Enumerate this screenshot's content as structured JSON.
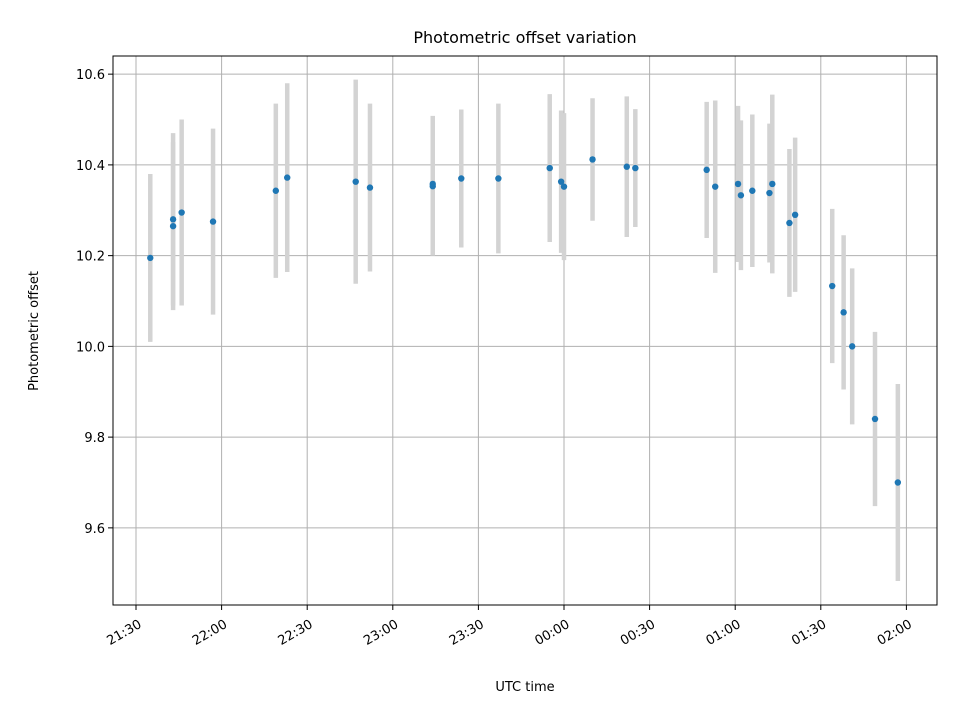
{
  "chart_data": {
    "type": "scatter",
    "title": "Photometric offset variation",
    "xlabel": "UTC time",
    "ylabel": "Photometric offset",
    "ylim": [
      9.43,
      10.64
    ],
    "grid": true,
    "x_is_time": true,
    "x_ticks": [
      "21:30",
      "22:00",
      "22:30",
      "23:00",
      "23:30",
      "00:00",
      "00:30",
      "01:00",
      "01:30",
      "02:00"
    ],
    "y_ticks": [
      "9.6",
      "9.8",
      "10.0",
      "10.2",
      "10.4",
      "10.6"
    ],
    "points": [
      {
        "time": "21:35",
        "y": 10.195,
        "err": 0.185
      },
      {
        "time": "21:43",
        "y": 10.28,
        "err": 0.19
      },
      {
        "time": "21:43",
        "y": 10.265,
        "err": 0.185
      },
      {
        "time": "21:46",
        "y": 10.295,
        "err": 0.205
      },
      {
        "time": "21:57",
        "y": 10.275,
        "err": 0.205
      },
      {
        "time": "22:19",
        "y": 10.343,
        "err": 0.192
      },
      {
        "time": "22:23",
        "y": 10.372,
        "err": 0.208
      },
      {
        "time": "22:47",
        "y": 10.363,
        "err": 0.225
      },
      {
        "time": "22:52",
        "y": 10.35,
        "err": 0.185
      },
      {
        "time": "23:14",
        "y": 10.353,
        "err": 0.153
      },
      {
        "time": "23:14",
        "y": 10.358,
        "err": 0.15
      },
      {
        "time": "23:24",
        "y": 10.37,
        "err": 0.152
      },
      {
        "time": "23:37",
        "y": 10.37,
        "err": 0.165
      },
      {
        "time": "23:55",
        "y": 10.393,
        "err": 0.163
      },
      {
        "time": "23:59",
        "y": 10.363,
        "err": 0.157
      },
      {
        "time": "00:00",
        "y": 10.352,
        "err": 0.162
      },
      {
        "time": "00:10",
        "y": 10.412,
        "err": 0.135
      },
      {
        "time": "00:22",
        "y": 10.396,
        "err": 0.155
      },
      {
        "time": "00:25",
        "y": 10.393,
        "err": 0.13
      },
      {
        "time": "00:50",
        "y": 10.389,
        "err": 0.15
      },
      {
        "time": "00:53",
        "y": 10.352,
        "err": 0.19
      },
      {
        "time": "01:01",
        "y": 10.358,
        "err": 0.172
      },
      {
        "time": "01:02",
        "y": 10.333,
        "err": 0.165
      },
      {
        "time": "01:06",
        "y": 10.343,
        "err": 0.168
      },
      {
        "time": "01:12",
        "y": 10.338,
        "err": 0.153
      },
      {
        "time": "01:13",
        "y": 10.358,
        "err": 0.197
      },
      {
        "time": "01:19",
        "y": 10.272,
        "err": 0.163
      },
      {
        "time": "01:21",
        "y": 10.29,
        "err": 0.17
      },
      {
        "time": "01:34",
        "y": 10.133,
        "err": 0.17
      },
      {
        "time": "01:38",
        "y": 10.075,
        "err": 0.17
      },
      {
        "time": "01:41",
        "y": 10.0,
        "err": 0.172
      },
      {
        "time": "01:49",
        "y": 9.84,
        "err": 0.192
      },
      {
        "time": "01:57",
        "y": 9.7,
        "err": 0.217
      }
    ]
  }
}
